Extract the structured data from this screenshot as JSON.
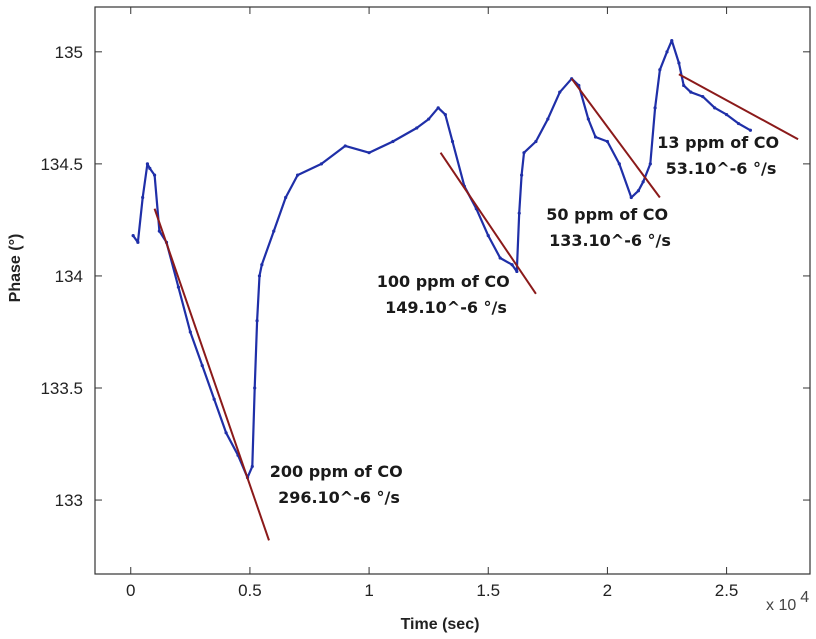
{
  "chart_data": {
    "type": "line",
    "xlabel": "Time (sec)",
    "ylabel": "Phase (°)",
    "x_multiplier_label": "x 10",
    "x_multiplier_exp": "4",
    "xlim": [
      -0.15,
      2.85
    ],
    "ylim": [
      132.67,
      135.2
    ],
    "x_ticks": [
      {
        "value": 0,
        "label": "0"
      },
      {
        "value": 0.5,
        "label": "0.5"
      },
      {
        "value": 1,
        "label": "1"
      },
      {
        "value": 1.5,
        "label": "1.5"
      },
      {
        "value": 2,
        "label": "2"
      },
      {
        "value": 2.5,
        "label": "2.5"
      }
    ],
    "y_ticks": [
      {
        "value": 133,
        "label": "133"
      },
      {
        "value": 133.5,
        "label": "133.5"
      },
      {
        "value": 134,
        "label": "134"
      },
      {
        "value": 134.5,
        "label": "134.5"
      },
      {
        "value": 135,
        "label": "135"
      }
    ],
    "grid": false,
    "colors": {
      "series": "#1f2fa8",
      "fit": "#8b1a1a",
      "axes": "#333333"
    },
    "series": [
      {
        "x": [
          0.01,
          0.03,
          0.05,
          0.07,
          0.08,
          0.1,
          0.12,
          0.15,
          0.2,
          0.25,
          0.3,
          0.35,
          0.4,
          0.45,
          0.49,
          0.51,
          0.52,
          0.53,
          0.54,
          0.55,
          0.6,
          0.65,
          0.7,
          0.8,
          0.9,
          1.0,
          1.1,
          1.2,
          1.25,
          1.29,
          1.32,
          1.35,
          1.4,
          1.45,
          1.5,
          1.55,
          1.6,
          1.62,
          1.63,
          1.64,
          1.65,
          1.7,
          1.75,
          1.8,
          1.85,
          1.88,
          1.92,
          1.95,
          2.0,
          2.05,
          2.1,
          2.13,
          2.15,
          2.18,
          2.2,
          2.22,
          2.25,
          2.27,
          2.3,
          2.32,
          2.35,
          2.4,
          2.45,
          2.5,
          2.55,
          2.6
        ],
        "y": [
          134.18,
          134.15,
          134.35,
          134.5,
          134.48,
          134.45,
          134.2,
          134.15,
          133.95,
          133.75,
          133.6,
          133.45,
          133.3,
          133.2,
          133.1,
          133.15,
          133.5,
          133.8,
          134.0,
          134.05,
          134.2,
          134.35,
          134.45,
          134.5,
          134.58,
          134.55,
          134.6,
          134.66,
          134.7,
          134.75,
          134.72,
          134.6,
          134.4,
          134.3,
          134.18,
          134.08,
          134.05,
          134.02,
          134.28,
          134.45,
          134.55,
          134.6,
          134.7,
          134.82,
          134.88,
          134.85,
          134.7,
          134.62,
          134.6,
          134.5,
          134.35,
          134.38,
          134.42,
          134.5,
          134.75,
          134.92,
          135.0,
          135.05,
          134.95,
          134.85,
          134.82,
          134.8,
          134.75,
          134.72,
          134.68,
          134.65
        ]
      }
    ],
    "fits": [
      {
        "x": [
          0.1,
          0.58
        ],
        "y": [
          134.3,
          132.82
        ]
      },
      {
        "x": [
          1.3,
          1.7
        ],
        "y": [
          134.55,
          133.92
        ]
      },
      {
        "x": [
          1.85,
          2.22
        ],
        "y": [
          134.88,
          134.35
        ]
      },
      {
        "x": [
          2.3,
          2.8
        ],
        "y": [
          134.9,
          134.61
        ]
      }
    ],
    "annotations": [
      {
        "line1": "200 ppm of CO",
        "line2": "296.10^-6 °/s"
      },
      {
        "line1": "100 ppm of CO",
        "line2": "149.10^-6 °/s"
      },
      {
        "line1": "50 ppm of CO",
        "line2": "133.10^-6 °/s"
      },
      {
        "line1": "13 ppm of CO",
        "line2": "53.10^-6 °/s"
      }
    ]
  }
}
